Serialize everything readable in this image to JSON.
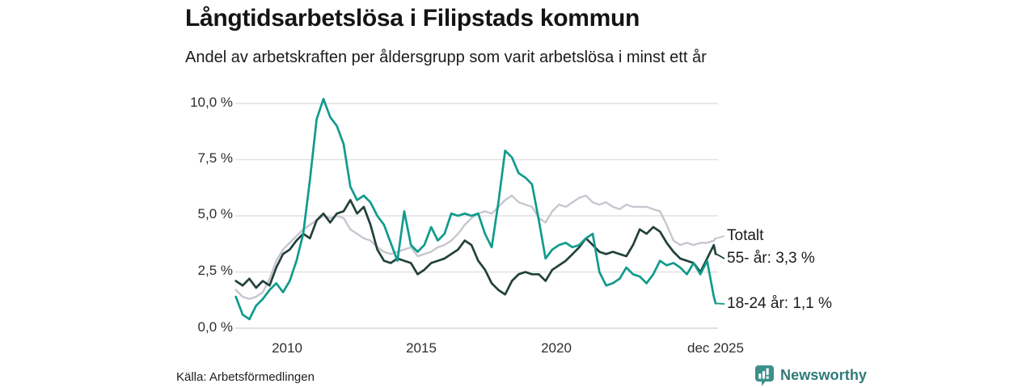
{
  "header": {
    "title": "Långtidsarbetslösa i Filipstads kommun",
    "subtitle": "Andel av arbetskraften per åldersgrupp som varit arbetslösa i minst ett år"
  },
  "footer": {
    "source": "Källa: Arbetsförmedlingen",
    "brand": "Newsworthy",
    "brand_icon": "bar-chart-speech-bubble-icon"
  },
  "colors": {
    "accent_teal": "#109b8c",
    "dark_green": "#21413a",
    "light_gray_series": "#c7c6cf",
    "grid": "#e1e1e1",
    "zero_line": "#d7d7d7",
    "brand_teal_icon": "#3a918a",
    "brand_teal_text": "#2f7a77"
  },
  "chart_data": {
    "type": "line",
    "title": "Långtidsarbetslösa i Filipstads kommun",
    "subtitle": "Andel av arbetskraften per åldersgrupp som varit arbetslösa i minst ett år",
    "xlabel": "",
    "ylabel": "",
    "ylim": [
      0,
      10.5
    ],
    "grid": true,
    "legend_position": "right-end-labels",
    "ytick_labels": [
      "10,0 %",
      "7,5 %",
      "5,0 %",
      "2,5 %",
      "0,0 %"
    ],
    "ytick_values": [
      10,
      7.5,
      5,
      2.5,
      0
    ],
    "xtick_labels": [
      "2010",
      "2015",
      "2020",
      "dec 2025"
    ],
    "xtick_values": [
      2010,
      2015,
      2020,
      2025.92
    ],
    "x": [
      2008.1,
      2008.35,
      2008.6,
      2008.85,
      2009.1,
      2009.35,
      2009.6,
      2009.85,
      2010.1,
      2010.35,
      2010.6,
      2010.85,
      2011.1,
      2011.35,
      2011.6,
      2011.85,
      2012.1,
      2012.35,
      2012.6,
      2012.85,
      2013.1,
      2013.35,
      2013.6,
      2013.85,
      2014.1,
      2014.35,
      2014.6,
      2014.85,
      2015.1,
      2015.35,
      2015.6,
      2015.85,
      2016.1,
      2016.35,
      2016.6,
      2016.85,
      2017.1,
      2017.35,
      2017.6,
      2017.85,
      2018.1,
      2018.35,
      2018.6,
      2018.85,
      2019.1,
      2019.35,
      2019.6,
      2019.85,
      2020.1,
      2020.35,
      2020.6,
      2020.85,
      2021.1,
      2021.35,
      2021.6,
      2021.85,
      2022.1,
      2022.35,
      2022.6,
      2022.85,
      2023.1,
      2023.35,
      2023.6,
      2023.85,
      2024.1,
      2024.35,
      2024.6,
      2024.85,
      2025.1,
      2025.35,
      2025.6,
      2025.85,
      2025.92
    ],
    "series": [
      {
        "name": "Totalt",
        "end_label": "Totalt",
        "color": "#c7c6cf",
        "values": [
          1.7,
          1.4,
          1.3,
          1.4,
          1.6,
          2.2,
          3.0,
          3.5,
          3.8,
          4.1,
          4.4,
          4.6,
          4.8,
          5.0,
          4.9,
          5.0,
          4.9,
          4.4,
          4.2,
          4.0,
          3.9,
          3.6,
          3.4,
          3.3,
          3.4,
          3.5,
          3.6,
          3.2,
          3.3,
          3.4,
          3.6,
          3.7,
          3.9,
          4.2,
          4.6,
          4.9,
          5.1,
          5.2,
          5.1,
          5.4,
          5.7,
          5.9,
          5.6,
          5.5,
          5.4,
          4.9,
          4.7,
          5.2,
          5.5,
          5.4,
          5.6,
          5.8,
          5.9,
          5.6,
          5.5,
          5.6,
          5.4,
          5.3,
          5.5,
          5.4,
          5.4,
          5.4,
          5.3,
          5.2,
          4.6,
          3.9,
          3.7,
          3.8,
          3.7,
          3.8,
          3.8,
          3.9,
          4.0
        ]
      },
      {
        "name": "55- år",
        "end_label": "55- år: 3,3 %",
        "end_value": "3,3 %",
        "color": "#21413a",
        "values": [
          2.1,
          1.9,
          2.2,
          1.8,
          2.1,
          1.9,
          2.7,
          3.3,
          3.5,
          3.9,
          4.2,
          4.0,
          4.8,
          5.1,
          4.7,
          5.1,
          5.2,
          5.7,
          5.1,
          5.4,
          4.6,
          3.5,
          3.0,
          2.9,
          3.1,
          3.0,
          2.9,
          2.4,
          2.6,
          2.9,
          3.0,
          3.1,
          3.3,
          3.5,
          3.9,
          3.7,
          3.0,
          2.6,
          2.0,
          1.7,
          1.5,
          2.1,
          2.4,
          2.5,
          2.4,
          2.4,
          2.1,
          2.6,
          2.8,
          3.0,
          3.3,
          3.6,
          4.0,
          3.7,
          3.4,
          3.3,
          3.4,
          3.3,
          3.2,
          3.7,
          4.4,
          4.2,
          4.5,
          4.3,
          3.8,
          3.4,
          3.1,
          3.0,
          2.9,
          2.5,
          3.1,
          3.7,
          3.3
        ]
      },
      {
        "name": "18-24 år",
        "end_label": "18-24 år: 1,1 %",
        "end_value": "1,1 %",
        "color": "#109b8c",
        "values": [
          1.4,
          0.6,
          0.4,
          1.0,
          1.3,
          1.7,
          2.0,
          1.6,
          2.1,
          3.0,
          4.2,
          6.6,
          9.3,
          10.2,
          9.4,
          9.0,
          8.2,
          6.3,
          5.7,
          5.9,
          5.6,
          5.0,
          4.6,
          3.8,
          3.0,
          5.2,
          3.7,
          3.4,
          3.7,
          4.5,
          3.9,
          4.2,
          5.1,
          5.0,
          5.1,
          5.0,
          5.1,
          4.2,
          3.6,
          5.6,
          7.9,
          7.6,
          6.9,
          6.7,
          6.4,
          4.8,
          3.1,
          3.5,
          3.7,
          3.8,
          3.6,
          3.7,
          4.0,
          4.2,
          2.5,
          1.9,
          2.0,
          2.2,
          2.7,
          2.4,
          2.3,
          2.0,
          2.4,
          3.0,
          2.8,
          2.9,
          2.7,
          2.4,
          2.9,
          2.4,
          3.0,
          1.4,
          1.1
        ]
      }
    ]
  }
}
